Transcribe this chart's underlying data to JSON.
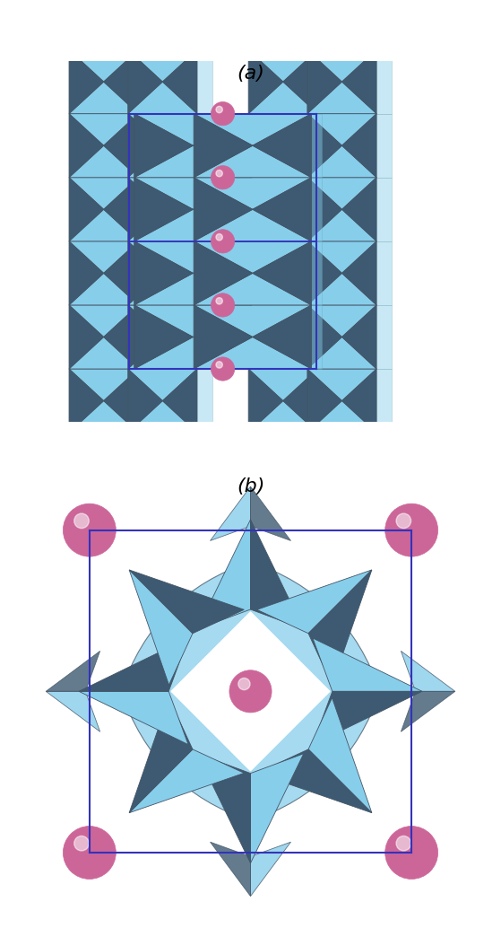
{
  "fig_width": 5.59,
  "fig_height": 10.34,
  "dpi": 100,
  "bg_color": "#ffffff",
  "label_a": "(a)",
  "label_b": "(b)",
  "cyan": "#87ceeb",
  "dark": "#3d5a72",
  "pink": "#cc6699",
  "box_color": "#3333bb",
  "label_fontsize": 16
}
